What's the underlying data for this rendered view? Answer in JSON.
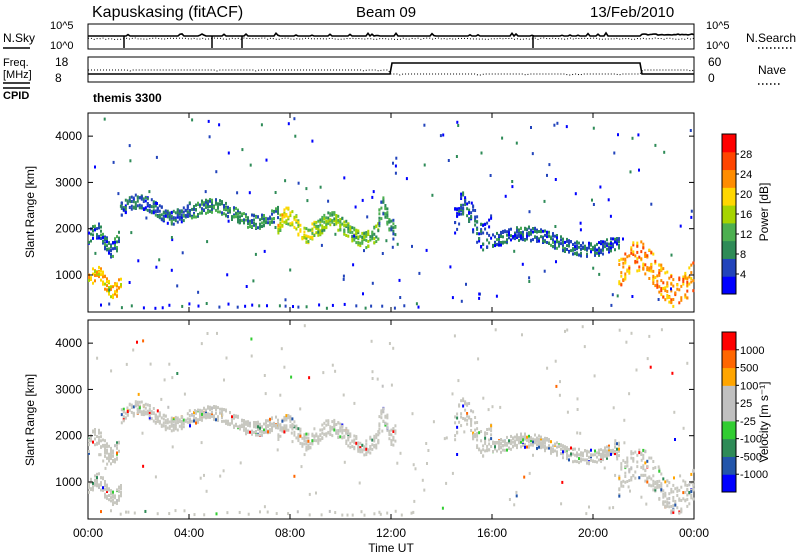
{
  "header": {
    "station": "Kapuskasing (fitACF)",
    "beam": "Beam 09",
    "date": "13/Feb/2010"
  },
  "top_panels": {
    "nsky_label": "N.Sky",
    "nsearch_label": "N.Search",
    "noise_ticks": [
      "10^5",
      "10^0"
    ],
    "freq_label_top": "Freq.",
    "freq_label_bottom": "[MHz]",
    "freq_ticks": [
      "18",
      "8"
    ],
    "nave_label": "Nave",
    "nave_ticks": [
      "60",
      "0"
    ],
    "cpid_label": "CPID",
    "cpid_value": "themis 3300"
  },
  "colors": {
    "power_scale": [
      "#0000ff",
      "#2244bb",
      "#2e8b57",
      "#4caf50",
      "#a6d400",
      "#ffd700",
      "#ff8c00",
      "#ff4500",
      "#ff0000"
    ],
    "velocity_scale": [
      "#ff0000",
      "#ff6600",
      "#ffa500",
      "#c0c0c0",
      "#c0c0c0",
      "#32cd32",
      "#2e8b57",
      "#2255aa",
      "#0000ff"
    ]
  },
  "chart_data": [
    {
      "type": "heatmap",
      "title": "",
      "xlabel": "Time UT",
      "ylabel": "Slant Range [km]",
      "ylim": [
        200,
        4500
      ],
      "xlim": [
        0,
        24
      ],
      "xticks": [
        "00:00",
        "04:00",
        "08:00",
        "12:00",
        "16:00",
        "20:00",
        "00:00"
      ],
      "yticks": [
        "1000",
        "2000",
        "3000",
        "4000"
      ],
      "colorbar": {
        "label": "Power [dB]",
        "ticks": [
          "4",
          "8",
          "12",
          "16",
          "20",
          "24",
          "28"
        ],
        "range": [
          0,
          30
        ]
      },
      "bands": [
        {
          "t0": 0.0,
          "t1": 1.2,
          "r0": 1500,
          "r1": 2100,
          "level": 6
        },
        {
          "t0": 0.0,
          "t1": 1.3,
          "r0": 600,
          "r1": 1150,
          "level": 20
        },
        {
          "t0": 1.3,
          "t1": 4.0,
          "r0": 2200,
          "r1": 2700,
          "level": 5
        },
        {
          "t0": 4.0,
          "t1": 7.5,
          "r0": 2100,
          "r1": 2600,
          "level": 8
        },
        {
          "t0": 7.5,
          "t1": 9.0,
          "r0": 1800,
          "r1": 2400,
          "level": 16
        },
        {
          "t0": 9.0,
          "t1": 11.5,
          "r0": 1700,
          "r1": 2300,
          "level": 12
        },
        {
          "t0": 11.5,
          "t1": 12.2,
          "r0": 1900,
          "r1": 2600,
          "level": 8
        },
        {
          "t0": 14.5,
          "t1": 16.0,
          "r0": 1700,
          "r1": 2700,
          "level": 4
        },
        {
          "t0": 16.0,
          "t1": 21.0,
          "r0": 1500,
          "r1": 2000,
          "level": 5
        },
        {
          "t0": 21.0,
          "t1": 24.0,
          "r0": 500,
          "r1": 1600,
          "level": 22
        }
      ]
    },
    {
      "type": "heatmap",
      "title": "",
      "xlabel": "Time UT",
      "ylabel": "Slant Range [km]",
      "ylim": [
        200,
        4500
      ],
      "xlim": [
        0,
        24
      ],
      "xticks": [
        "00:00",
        "04:00",
        "08:00",
        "12:00",
        "16:00",
        "20:00",
        "00:00"
      ],
      "yticks": [
        "1000",
        "2000",
        "3000",
        "4000"
      ],
      "colorbar": {
        "label": "Velocity [m s⁻¹]",
        "ticks": [
          "1000",
          "500",
          "100",
          "25",
          "-25",
          "-100",
          "-500",
          "-1000"
        ],
        "range": [
          -1000,
          1000
        ]
      },
      "bands": [
        {
          "t0": 0.0,
          "t1": 1.2,
          "r0": 1500,
          "r1": 2100
        },
        {
          "t0": 0.0,
          "t1": 1.3,
          "r0": 600,
          "r1": 1150
        },
        {
          "t0": 1.3,
          "t1": 4.0,
          "r0": 2200,
          "r1": 2700
        },
        {
          "t0": 4.0,
          "t1": 7.5,
          "r0": 2100,
          "r1": 2600
        },
        {
          "t0": 7.5,
          "t1": 9.0,
          "r0": 1800,
          "r1": 2400
        },
        {
          "t0": 9.0,
          "t1": 11.5,
          "r0": 1700,
          "r1": 2300
        },
        {
          "t0": 11.5,
          "t1": 12.2,
          "r0": 1900,
          "r1": 2600
        },
        {
          "t0": 14.5,
          "t1": 16.0,
          "r0": 1700,
          "r1": 2700
        },
        {
          "t0": 16.0,
          "t1": 21.0,
          "r0": 1500,
          "r1": 2000
        },
        {
          "t0": 21.0,
          "t1": 24.0,
          "r0": 500,
          "r1": 1600
        }
      ]
    }
  ]
}
